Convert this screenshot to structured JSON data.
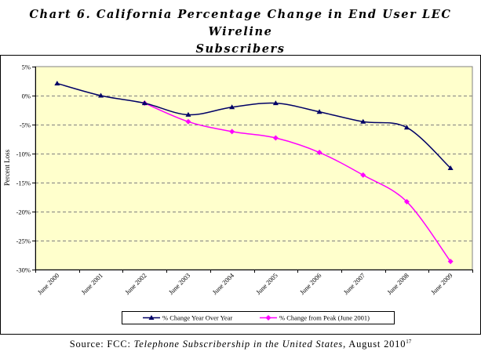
{
  "title_line1": "Chart 6. California Percentage Change in End User LEC Wireline",
  "title_line2": "Subscribers",
  "source": {
    "prefix": "Source:  FCC: ",
    "publication": "Telephone Subscribership in the United States",
    "suffix": ", August 2010",
    "footnote": "17"
  },
  "colors": {
    "plot_background": "#ffffcc",
    "series1": "#000066",
    "series2": "#ff00ff",
    "gridline": "#808080"
  },
  "chart_data": {
    "type": "line",
    "title": "",
    "xlabel": "",
    "ylabel": "Percent Loss",
    "categories": [
      "June 2000",
      "June 2001",
      "June 2002",
      "June 2003",
      "June 2004",
      "June 2005",
      "June 2006",
      "June 2007",
      "June 2008",
      "June 2009"
    ],
    "ylim": [
      -30,
      5
    ],
    "yticks": [
      5,
      0,
      -5,
      -10,
      -15,
      -20,
      -25,
      -30
    ],
    "ytick_labels": [
      "5%",
      "0%",
      "-5%",
      "-10%",
      "-15%",
      "-20%",
      "-25%",
      "-30%"
    ],
    "grid": "horizontal dashed",
    "legend_position": "bottom",
    "series": [
      {
        "name": "% Change Year Over Year",
        "marker": "triangle",
        "color": "#000066",
        "values": [
          2.1,
          0.0,
          -1.3,
          -3.3,
          -2.0,
          -1.3,
          -2.8,
          -4.5,
          -5.5,
          -12.5
        ]
      },
      {
        "name": "% Change from Peak (June 2001)",
        "marker": "diamond",
        "color": "#ff00ff",
        "values": [
          null,
          null,
          -1.3,
          -4.5,
          -6.2,
          -7.3,
          -9.8,
          -13.7,
          -18.3,
          -28.6
        ]
      }
    ]
  }
}
